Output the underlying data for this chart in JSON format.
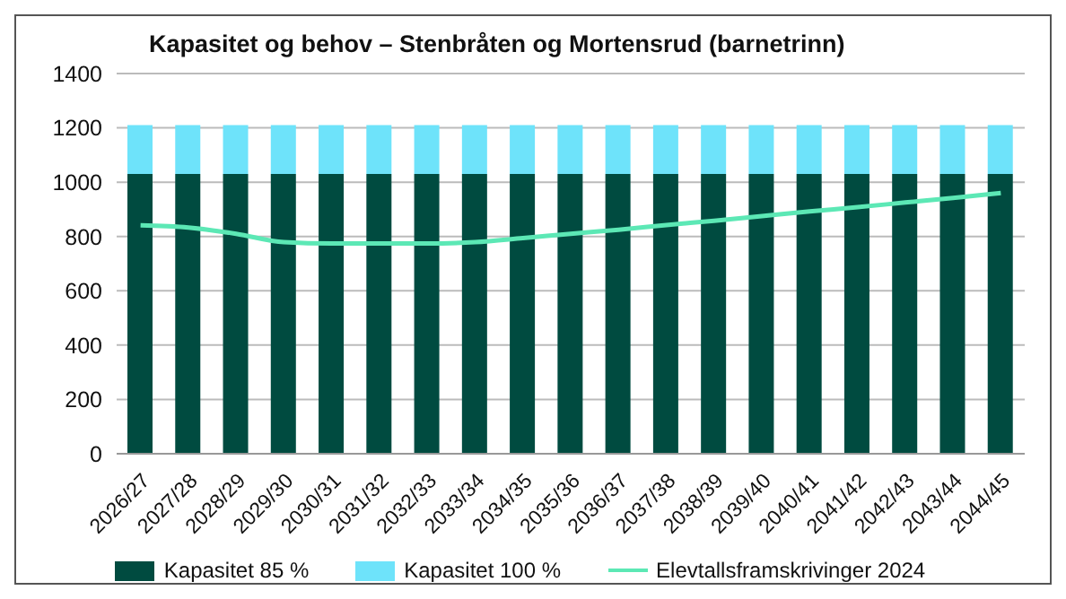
{
  "chart_data": {
    "type": "bar",
    "title": "Kapasitet og behov – Stenbråten og Mortensrud (barnetrinn)",
    "stacked": true,
    "categories": [
      "2026/27",
      "2027/28",
      "2028/29",
      "2029/30",
      "2030/31",
      "2031/32",
      "2032/33",
      "2033/34",
      "2034/35",
      "2035/36",
      "2036/37",
      "2037/38",
      "2038/39",
      "2039/40",
      "2040/41",
      "2041/42",
      "2042/43",
      "2043/44",
      "2044/45"
    ],
    "series": [
      {
        "name": "Kapasitet 85 %",
        "color": "#004b40",
        "values": [
          1030,
          1030,
          1030,
          1030,
          1030,
          1030,
          1030,
          1030,
          1030,
          1030,
          1030,
          1030,
          1030,
          1030,
          1030,
          1030,
          1030,
          1030,
          1030
        ]
      },
      {
        "name": "Kapasitet 100 %",
        "color": "#6ee3fa",
        "values": [
          180,
          180,
          180,
          180,
          180,
          180,
          180,
          180,
          180,
          180,
          180,
          180,
          180,
          180,
          180,
          180,
          180,
          180,
          180
        ]
      },
      {
        "name": "Elevtallsframskrivinger 2024",
        "type": "line",
        "color": "#5ce8b5",
        "values": [
          841,
          833,
          810,
          779,
          774,
          774,
          774,
          779,
          794,
          810,
          825,
          842,
          858,
          875,
          892,
          908,
          925,
          942,
          960
        ]
      }
    ],
    "ylim": [
      0,
      1400
    ],
    "yticks": [
      0,
      200,
      400,
      600,
      800,
      1000,
      1200,
      1400
    ],
    "grid": "y",
    "legend": "bottom",
    "marker": "none"
  }
}
